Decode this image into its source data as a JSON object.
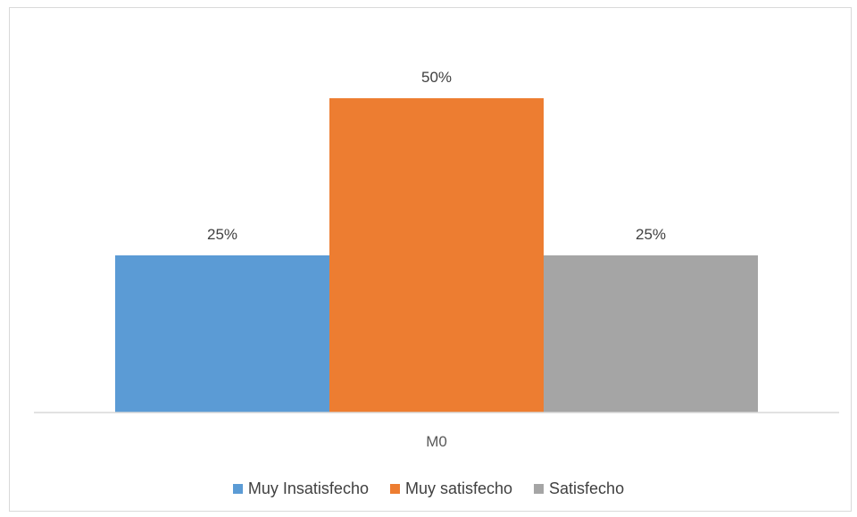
{
  "chart_data": {
    "type": "bar",
    "categories": [
      "M0"
    ],
    "series": [
      {
        "name": "Muy Insatisfecho",
        "values": [
          25
        ],
        "label": "25%",
        "color": "#5b9bd5"
      },
      {
        "name": "Muy satisfecho",
        "values": [
          50
        ],
        "label": "50%",
        "color": "#ed7d31"
      },
      {
        "name": "Satisfecho",
        "values": [
          25
        ],
        "label": "25%",
        "color": "#a5a5a5"
      }
    ],
    "ylim": [
      0,
      50
    ],
    "grid": false,
    "legend_position": "bottom",
    "title": "",
    "xlabel": "",
    "ylabel": ""
  }
}
